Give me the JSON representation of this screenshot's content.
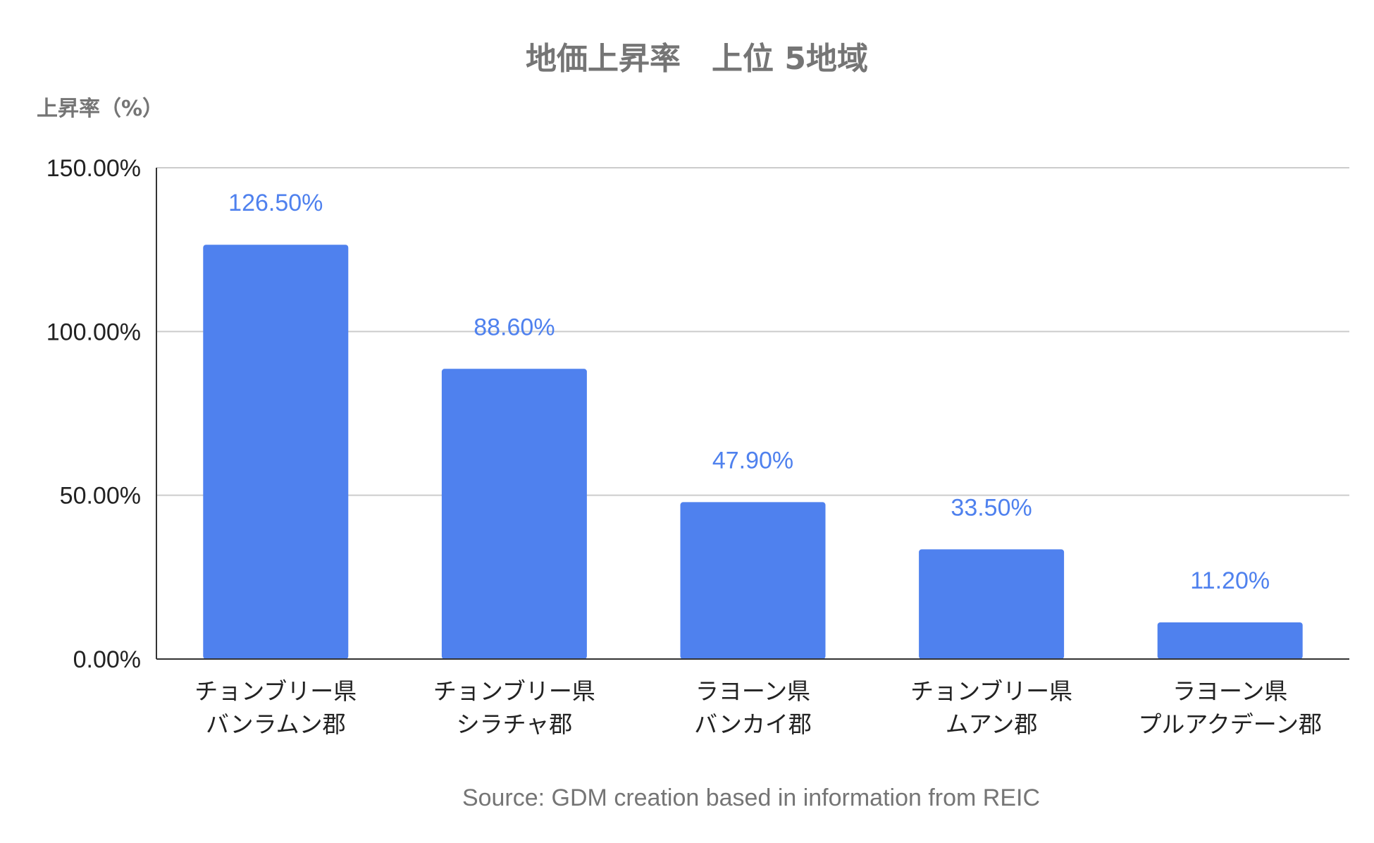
{
  "chart_data": {
    "type": "bar",
    "title": "地価上昇率　上位 5地域",
    "ylabel": "上昇率（%）",
    "xlabel": "",
    "categories": [
      [
        "チョンブリー県",
        "バンラムン郡"
      ],
      [
        "チョンブリー県",
        "シラチャ郡"
      ],
      [
        "ラヨーン県",
        "バンカイ郡"
      ],
      [
        "チョンブリー県",
        "ムアン郡"
      ],
      [
        "ラヨーン県",
        "プルアクデーン郡"
      ]
    ],
    "values": [
      126.5,
      88.6,
      47.9,
      33.5,
      11.2
    ],
    "data_labels": [
      "126.50%",
      "88.60%",
      "47.90%",
      "33.50%",
      "11.20%"
    ],
    "ylim": [
      0,
      150
    ],
    "yticks": [
      0,
      50,
      100,
      150
    ],
    "ytick_labels": [
      "0.00%",
      "50.00%",
      "100.00%",
      "150.00%"
    ],
    "grid": true,
    "legend": "none",
    "bar_color": "#4f81ee",
    "label_color": "#4f81ee",
    "source": "Source: GDM creation based in information from REIC"
  }
}
